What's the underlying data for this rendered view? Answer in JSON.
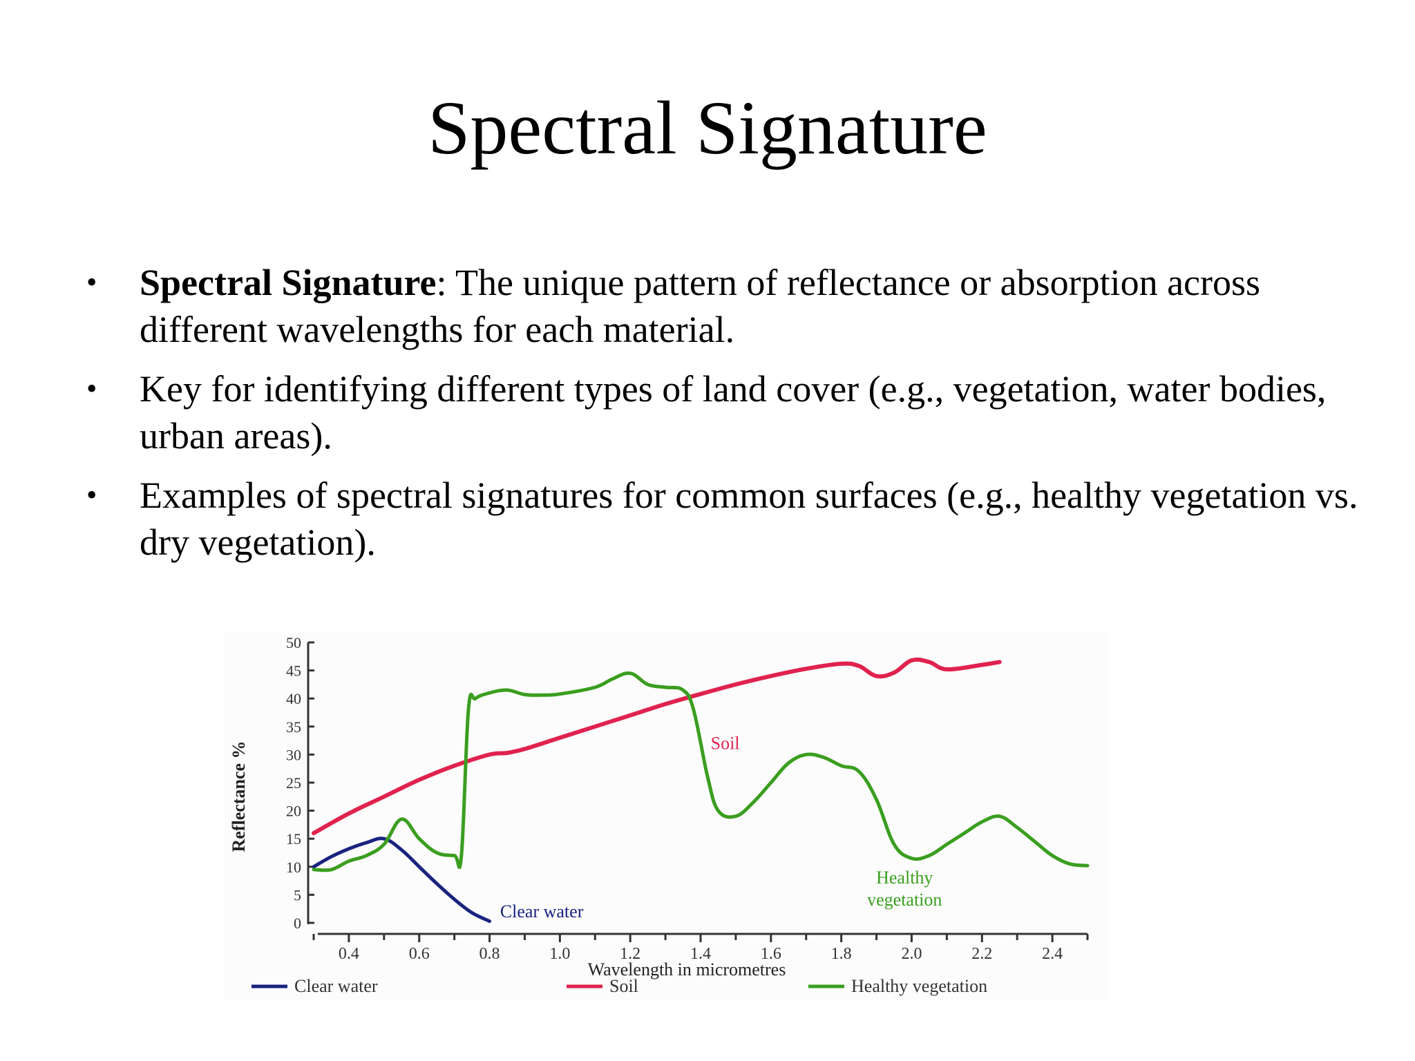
{
  "slide": {
    "title": "Spectral Signature",
    "bullets": [
      {
        "bold": "Spectral Signature",
        "text": ": The unique pattern of reflectance or absorption across different wavelengths for each material."
      },
      {
        "bold": "",
        "text": "Key for identifying different types of land cover (e.g., vegetation, water bodies, urban areas)."
      },
      {
        "bold": "",
        "text": "Examples of spectral signatures for common surfaces (e.g., healthy vegetation vs. dry vegetation)."
      }
    ],
    "bullet_symbol": "•"
  },
  "chart_data": {
    "type": "line",
    "title": "",
    "xlabel": "Wavelength in micrometres",
    "ylabel": "Reflectance %",
    "xlim": [
      0.3,
      2.5
    ],
    "ylim": [
      0,
      50
    ],
    "xticks": [
      "0.4",
      "0.6",
      "0.8",
      "1.0",
      "1.2",
      "1.4",
      "1.6",
      "1.8",
      "2.0",
      "2.2",
      "2.4"
    ],
    "yticks": [
      "0",
      "5",
      "10",
      "15",
      "20",
      "25",
      "30",
      "35",
      "40",
      "45",
      "50"
    ],
    "legend_position": "bottom",
    "series": [
      {
        "name": "Clear water",
        "color": "#1a237e",
        "label_in_plot": "Clear water",
        "x": [
          0.3,
          0.35,
          0.4,
          0.45,
          0.5,
          0.55,
          0.6,
          0.65,
          0.7,
          0.75,
          0.8
        ],
        "y": [
          10,
          11.8,
          13.2,
          14.3,
          15,
          13,
          10,
          7,
          4.2,
          1.8,
          0.3
        ]
      },
      {
        "name": "Soil",
        "color": "#e0224e",
        "label_in_plot": "Soil",
        "x": [
          0.3,
          0.4,
          0.5,
          0.6,
          0.7,
          0.8,
          0.85,
          0.9,
          1.0,
          1.1,
          1.2,
          1.3,
          1.4,
          1.5,
          1.6,
          1.7,
          1.8,
          1.85,
          1.9,
          1.95,
          2.0,
          2.05,
          2.1,
          2.2,
          2.25
        ],
        "y": [
          16,
          19.5,
          22.5,
          25.5,
          28,
          30,
          30.3,
          31,
          33,
          35,
          37,
          39,
          40.8,
          42.5,
          44,
          45.3,
          46.2,
          45.8,
          44,
          44.6,
          46.8,
          46.5,
          45.2,
          46,
          46.5
        ]
      },
      {
        "name": "Healthy vegetation",
        "color": "#3a9e1f",
        "label_in_plot": "Healthy\nvegetation",
        "x": [
          0.3,
          0.35,
          0.4,
          0.45,
          0.5,
          0.55,
          0.6,
          0.65,
          0.7,
          0.72,
          0.74,
          0.76,
          0.8,
          0.85,
          0.9,
          0.95,
          1.0,
          1.1,
          1.15,
          1.2,
          1.25,
          1.3,
          1.35,
          1.38,
          1.42,
          1.45,
          1.5,
          1.55,
          1.6,
          1.65,
          1.7,
          1.75,
          1.8,
          1.85,
          1.9,
          1.95,
          2.0,
          2.05,
          2.1,
          2.15,
          2.2,
          2.25,
          2.3,
          2.35,
          2.4,
          2.45,
          2.5
        ],
        "y": [
          9.5,
          9.5,
          11,
          12,
          14,
          18.5,
          15,
          12.5,
          12,
          12,
          38,
          40,
          41,
          41.5,
          40.7,
          40.6,
          40.8,
          42,
          43.5,
          44.5,
          42.5,
          42,
          41.5,
          38,
          26,
          20,
          19,
          21.5,
          25,
          28.5,
          30,
          29.5,
          28,
          27,
          22,
          14,
          11.5,
          12,
          14,
          16,
          18,
          19,
          17,
          14.5,
          12,
          10.5,
          10.2
        ]
      }
    ]
  }
}
